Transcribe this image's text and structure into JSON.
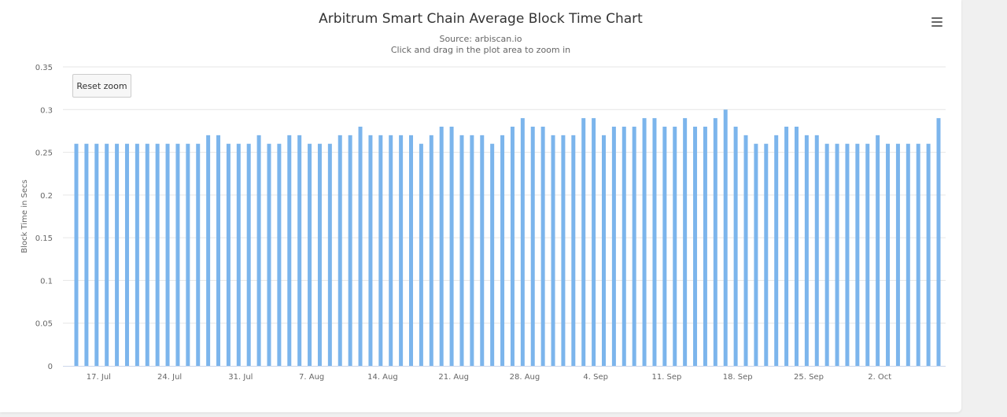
{
  "chart_data": {
    "type": "bar",
    "title": "Arbitrum Smart Chain Average Block Time Chart",
    "subtitle": "Source: arbiscan.io",
    "instruction": "Click and drag in the plot area to zoom in",
    "ylabel": "Block Time in Secs",
    "xlabel": "",
    "ylim": [
      0,
      0.35
    ],
    "yticks": [
      "0",
      "0.05",
      "0.1",
      "0.15",
      "0.2",
      "0.25",
      "0.3",
      "0.35"
    ],
    "x_start_date": "2022-07-17",
    "xticks": [
      "17. Jul",
      "24. Jul",
      "31. Jul",
      "7. Aug",
      "14. Aug",
      "21. Aug",
      "28. Aug",
      "4. Sep",
      "11. Sep",
      "18. Sep",
      "25. Sep",
      "2. Oct"
    ],
    "values": [
      0.26,
      0.26,
      0.26,
      0.26,
      0.26,
      0.26,
      0.26,
      0.26,
      0.26,
      0.26,
      0.26,
      0.26,
      0.26,
      0.27,
      0.27,
      0.26,
      0.26,
      0.26,
      0.27,
      0.26,
      0.26,
      0.27,
      0.27,
      0.26,
      0.26,
      0.26,
      0.27,
      0.27,
      0.28,
      0.27,
      0.27,
      0.27,
      0.27,
      0.27,
      0.26,
      0.27,
      0.28,
      0.28,
      0.27,
      0.27,
      0.27,
      0.26,
      0.27,
      0.28,
      0.29,
      0.28,
      0.28,
      0.27,
      0.27,
      0.27,
      0.29,
      0.29,
      0.27,
      0.28,
      0.28,
      0.28,
      0.29,
      0.29,
      0.28,
      0.28,
      0.29,
      0.28,
      0.28,
      0.29,
      0.3,
      0.28,
      0.27,
      0.26,
      0.26,
      0.27,
      0.28,
      0.28,
      0.27,
      0.27,
      0.26,
      0.26,
      0.26,
      0.26,
      0.26,
      0.27,
      0.26,
      0.26,
      0.26,
      0.26,
      0.26,
      0.29
    ],
    "bar_color": "#7cb5ec",
    "grid": true,
    "legend": "none"
  },
  "ui": {
    "reset_zoom_label": "Reset zoom",
    "menu_icon": "hamburger-menu-icon"
  }
}
